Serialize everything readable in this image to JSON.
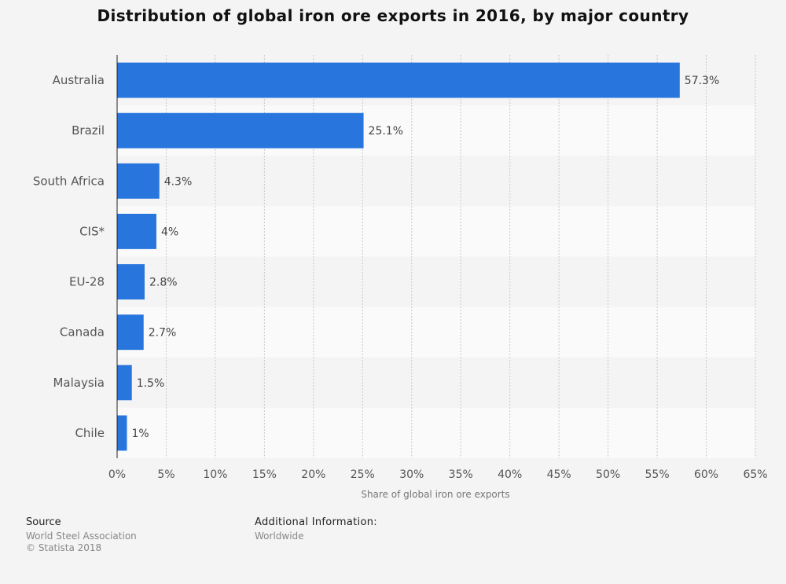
{
  "chart_data": {
    "type": "bar",
    "orientation": "horizontal",
    "title": "Distribution of global iron ore exports in 2016, by major country",
    "categories": [
      "Australia",
      "Brazil",
      "South Africa",
      "CIS*",
      "EU-28",
      "Canada",
      "Malaysia",
      "Chile"
    ],
    "values": [
      57.3,
      25.1,
      4.3,
      4.0,
      2.8,
      2.7,
      1.5,
      1.0
    ],
    "value_labels": [
      "57.3%",
      "25.1%",
      "4.3%",
      "4%",
      "2.8%",
      "2.7%",
      "1.5%",
      "1%"
    ],
    "xlabel": "Share of global iron ore exports",
    "ylabel": "",
    "xlim": [
      0,
      65
    ],
    "x_ticks": [
      0,
      5,
      10,
      15,
      20,
      25,
      30,
      35,
      40,
      45,
      50,
      55,
      60,
      65
    ],
    "x_tick_labels": [
      "0%",
      "5%",
      "10%",
      "15%",
      "20%",
      "25%",
      "30%",
      "35%",
      "40%",
      "45%",
      "50%",
      "55%",
      "60%",
      "65%"
    ],
    "grid": "vertical dotted",
    "bar_color": "#2876dd"
  },
  "footer": {
    "source_heading": "Source",
    "source_line1": "World Steel Association",
    "source_line2": "© Statista 2018",
    "info_heading": "Additional Information:",
    "info_line1": "Worldwide"
  }
}
